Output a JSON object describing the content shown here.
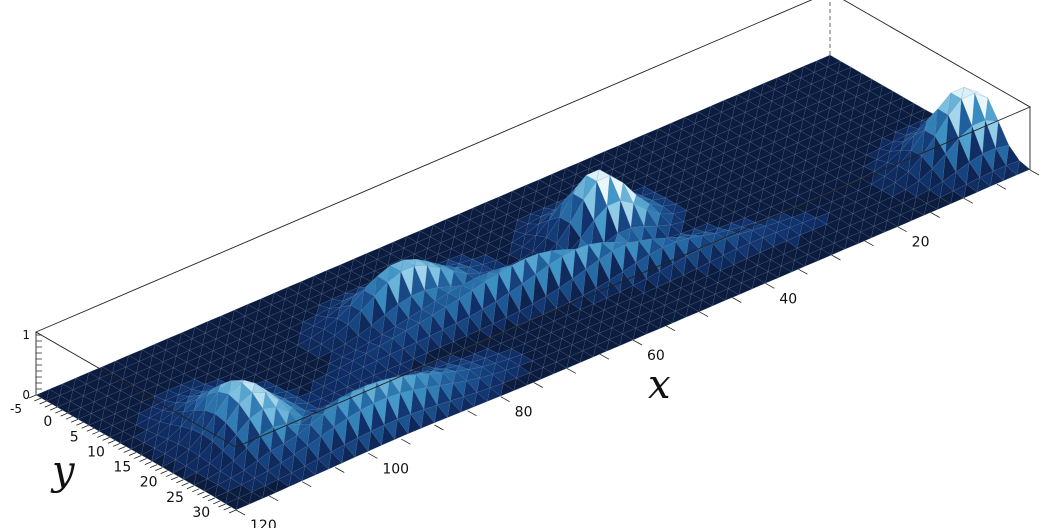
{
  "chart_data": {
    "type": "surface",
    "title": "",
    "xlabel": "x",
    "ylabel": "y",
    "zlabel": "",
    "xlim": [
      0,
      120
    ],
    "ylim": [
      -5,
      33
    ],
    "zlim": [
      0,
      1
    ],
    "x_ticks": [
      "20",
      "40",
      "60",
      "80",
      "100",
      "120"
    ],
    "y_ticks": [
      "0",
      "5",
      "10",
      "15",
      "20",
      "25",
      "30"
    ],
    "z_ticks": [
      "1",
      "0"
    ],
    "y_floor_label": "-5",
    "colormap": [
      "#0b1530",
      "#10306a",
      "#1f5e9c",
      "#3e95c6",
      "#86c6e4",
      "#e9f6fb"
    ],
    "surface": {
      "description_points": [
        {
          "x": 3,
          "y": 24,
          "z": 1.0
        },
        {
          "x": 48,
          "y": 10,
          "z": 1.0
        },
        {
          "x": 60,
          "y": 18,
          "z": 0.55
        },
        {
          "x": 76,
          "y": 8,
          "z": 0.5
        },
        {
          "x": 108,
          "y": 18,
          "z": 0.7
        }
      ]
    }
  }
}
